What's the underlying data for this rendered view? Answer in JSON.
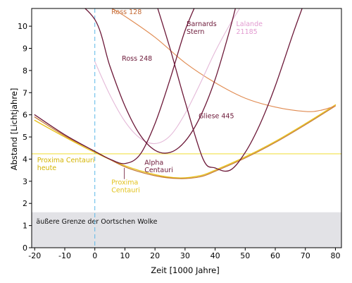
{
  "chart_data": {
    "type": "line",
    "title": "",
    "xlabel": "Zeit [1000 Jahre]",
    "ylabel": "Abstand [Lichtjahre]",
    "xlim": [
      -21,
      82
    ],
    "ylim": [
      0,
      10.8
    ],
    "xticks": [
      -20,
      -10,
      0,
      10,
      20,
      30,
      40,
      50,
      60,
      70,
      80
    ],
    "yticks": [
      0,
      1,
      2,
      3,
      4,
      5,
      6,
      7,
      8,
      9,
      10
    ],
    "grid": false,
    "present_x": 0,
    "oort_limit": {
      "y": 1.6,
      "color": "#e2e2e6",
      "label": "äußere Grenze der Oortschen Wolke"
    },
    "proxima_heute": {
      "y": 4.24,
      "color": "#f2e14a",
      "label": "Proxima Centauri\nheute"
    },
    "series": [
      {
        "name": "Proxima Centauri",
        "color": "#e8c21c",
        "width": 1.4,
        "x": [
          -20,
          -10,
          0,
          10,
          20,
          28,
          35,
          40,
          50,
          60,
          70,
          80
        ],
        "y": [
          5.75,
          5.0,
          4.3,
          3.7,
          3.3,
          3.15,
          3.25,
          3.5,
          4.1,
          4.8,
          5.6,
          6.45
        ]
      },
      {
        "name": "Alpha Centauri",
        "color": "#c47832",
        "width": 1.2,
        "x": [
          -20,
          -10,
          0,
          10,
          20,
          28,
          35,
          40,
          50,
          60,
          70,
          80
        ],
        "y": [
          5.9,
          5.05,
          4.35,
          3.65,
          3.25,
          3.12,
          3.2,
          3.45,
          4.05,
          4.75,
          5.55,
          6.4
        ]
      },
      {
        "name": "Ross 128",
        "color": "#e08a50",
        "width": 1.1,
        "x": [
          5,
          10,
          20,
          30,
          40,
          50,
          60,
          70,
          75,
          80
        ],
        "y": [
          10.85,
          10.45,
          9.5,
          8.35,
          7.45,
          6.75,
          6.35,
          6.15,
          6.2,
          6.4
        ]
      },
      {
        "name": "Lalande 21185",
        "color": "#e4b9d8",
        "width": 1.1,
        "x": [
          0,
          5,
          10,
          15,
          20,
          25,
          30,
          35,
          40,
          45,
          50
        ],
        "y": [
          8.4,
          6.9,
          5.7,
          4.95,
          4.7,
          5.05,
          6.05,
          7.4,
          8.85,
          10.1,
          11.2
        ]
      },
      {
        "name": "Ross 248",
        "color": "#6c1838",
        "width": 1.3,
        "x": [
          -10,
          0,
          5,
          10,
          15,
          20,
          25,
          30,
          35,
          40,
          45,
          48
        ],
        "y": [
          11.5,
          10.3,
          8.2,
          6.4,
          5.1,
          4.4,
          4.3,
          4.8,
          5.9,
          7.6,
          9.9,
          11.5
        ]
      },
      {
        "name": "Barnards Stern",
        "color": "#6c1838",
        "width": 1.3,
        "x": [
          -20,
          -10,
          0,
          5,
          10,
          15,
          20,
          25,
          30,
          35
        ],
        "y": [
          6.0,
          5.1,
          4.35,
          4.0,
          3.8,
          4.2,
          5.6,
          7.6,
          9.8,
          11.4
        ]
      },
      {
        "name": "Gliese 445",
        "color": "#6c1838",
        "width": 1.3,
        "x": [
          20,
          25,
          30,
          36,
          40,
          45,
          50,
          55,
          60,
          66,
          70
        ],
        "y": [
          11.2,
          9.0,
          6.6,
          4.0,
          3.6,
          3.5,
          4.3,
          5.6,
          7.3,
          9.7,
          11.2
        ]
      }
    ],
    "annotations": [
      {
        "text": "Ross 128",
        "x": 5.5,
        "y": 10.55,
        "color": "#c46a35"
      },
      {
        "text": "Barnards\nStern",
        "x": 30.5,
        "y": 10.0,
        "color": "#6c1838"
      },
      {
        "text": "Lalande\n21185",
        "x": 47,
        "y": 10.0,
        "color": "#e29ad0"
      },
      {
        "text": "Ross 248",
        "x": 9,
        "y": 8.45,
        "color": "#6c1838"
      },
      {
        "text": "Gliese 445",
        "x": 34.5,
        "y": 5.85,
        "color": "#6c1838"
      },
      {
        "text": "Alpha\nCentauri",
        "x": 16.5,
        "y": 3.75,
        "color": "#6c1838"
      },
      {
        "text": "Proxima\nCentauri",
        "x": 5.5,
        "y": 2.85,
        "color": "#e2c21c"
      }
    ]
  }
}
